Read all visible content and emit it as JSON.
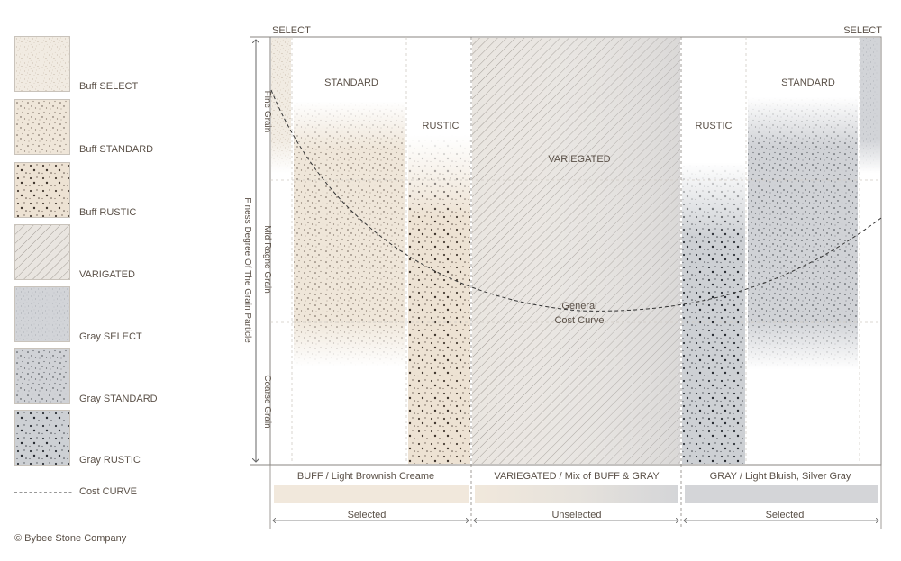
{
  "legend": {
    "items": [
      {
        "label": "Buff SELECT",
        "fill": "url(#pBuffSelect)"
      },
      {
        "label": "Buff STANDARD",
        "fill": "url(#pBuffStd)"
      },
      {
        "label": "Buff RUSTIC",
        "fill": "url(#pBuffRustic)"
      },
      {
        "label": "VARIGATED",
        "fill": "url(#pVar)"
      },
      {
        "label": "Gray SELECT",
        "fill": "url(#pGraySelect)"
      },
      {
        "label": "Gray STANDARD",
        "fill": "url(#pGrayStd)"
      },
      {
        "label": "Gray RUSTIC",
        "fill": "url(#pGrayRustic)"
      }
    ],
    "cost_curve_label": "Cost CURVE"
  },
  "copyright": "© Bybee Stone Company",
  "diagram": {
    "y_axis_label": "Finess Degree Of The Grain Particle",
    "grain_levels": [
      "Fine Grain",
      "Mid Ragne Grain",
      "Coarse Grain"
    ],
    "zone_labels": {
      "select_left": "SELECT",
      "select_right": "SELECT",
      "standard_left": "STANDARD",
      "rustic_left": "RUSTIC",
      "variegated": "VARIEGATED",
      "rustic_right": "RUSTIC",
      "standard_right": "STANDARD"
    },
    "curve_label_line1": "General",
    "curve_label_line2": "Cost Curve",
    "color_groups": [
      "BUFF / Light Brownish Creame",
      "VARIEGATED / Mix of BUFF & GRAY",
      "GRAY / Light Bluish, Silver Gray"
    ],
    "selection": [
      "Selected",
      "Unselected",
      "Selected"
    ],
    "colors": {
      "buff": "#f1e8dc",
      "gray": "#d4d5d8",
      "text": "#5a5047"
    }
  }
}
